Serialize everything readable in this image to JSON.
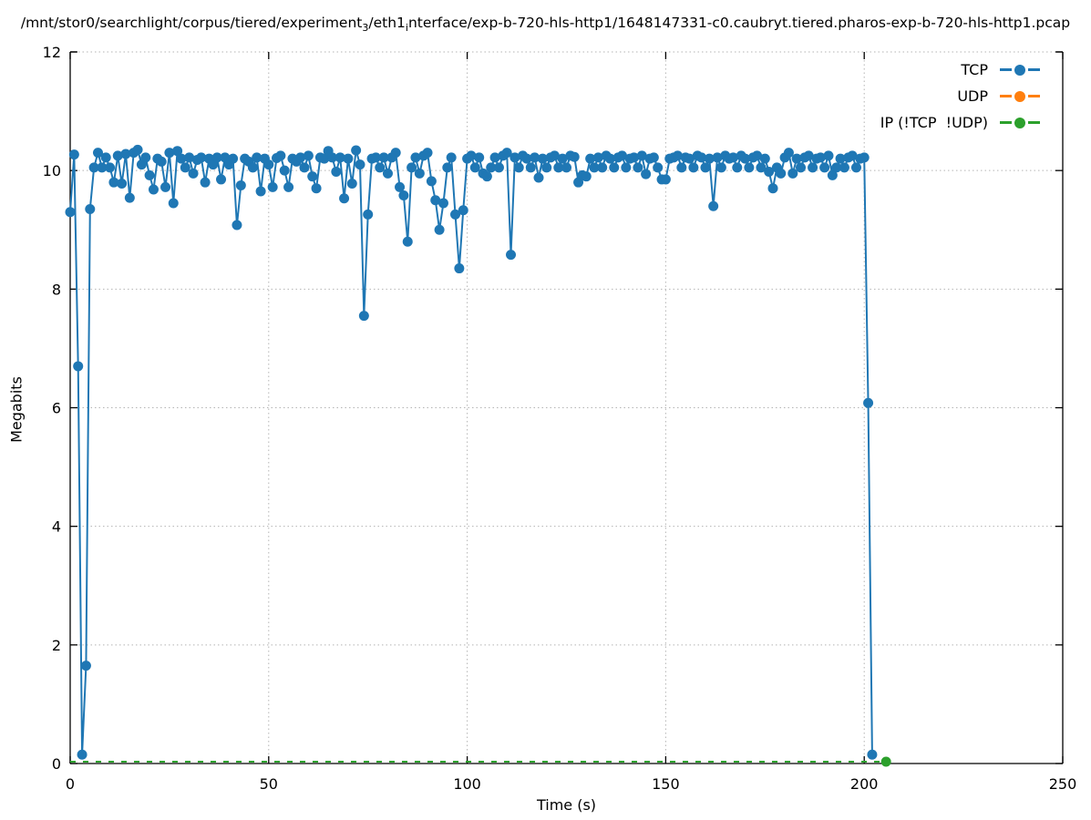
{
  "title": {
    "pre": "/mnt/stor0/searchlight/corpus/tiered/experiment",
    "sub1": "3",
    "mid": "/eth1",
    "sub2": "i",
    "post": "nterface/exp-b-720-hls-http1/1648147331-c0.caubryt.tiered.pharos-exp-b-720-hls-http1.pcap"
  },
  "axes": {
    "ylabel": "Megabits",
    "xlabel": "Time (s)",
    "xlim": [
      0,
      250
    ],
    "ylim": [
      0,
      12
    ],
    "x_ticks": [
      0,
      50,
      100,
      150,
      200,
      250
    ],
    "y_ticks": [
      0,
      2,
      4,
      6,
      8,
      10,
      12
    ],
    "grid": "dotted"
  },
  "legend": {
    "position": "top-right-inside",
    "items": [
      {
        "label": "TCP",
        "color": "#1f77b4"
      },
      {
        "label": "UDP",
        "color": "#ff7f0e"
      },
      {
        "label": "IP (!TCP  !UDP)",
        "color": "#2ca02c"
      }
    ]
  },
  "colors": {
    "tcp": "#1f77b4",
    "udp": "#ff7f0e",
    "ip_other": "#2ca02c",
    "grid": "#b4b4b4",
    "axis": "#000000",
    "background": "#ffffff"
  },
  "chart_data": {
    "type": "line",
    "title": "/mnt/stor0/searchlight/corpus/tiered/experiment_3/eth1_interface/exp-b-720-hls-http1/1648147331-c0.caubryt.tiered.pharos-exp-b-720-hls-http1.pcap",
    "xlabel": "Time (s)",
    "ylabel": "Megabits",
    "xlim": [
      0,
      250
    ],
    "ylim": [
      0,
      12
    ],
    "legend_position": "top-right",
    "series": [
      {
        "name": "TCP",
        "color": "#1f77b4",
        "markers": "all",
        "dash": null,
        "x_start": 0,
        "x_step": 1,
        "values": [
          9.3,
          10.27,
          6.7,
          0.15,
          1.65,
          9.35,
          10.05,
          10.3,
          10.05,
          10.22,
          10.05,
          9.8,
          10.25,
          9.78,
          10.28,
          9.54,
          10.3,
          10.35,
          10.1,
          10.22,
          9.92,
          9.68,
          10.2,
          10.15,
          9.72,
          10.3,
          9.45,
          10.33,
          10.2,
          10.05,
          10.22,
          9.95,
          10.18,
          10.22,
          9.8,
          10.2,
          10.1,
          10.22,
          9.85,
          10.22,
          10.1,
          10.2,
          9.08,
          9.75,
          10.2,
          10.15,
          10.05,
          10.22,
          9.65,
          10.2,
          10.1,
          9.72,
          10.21,
          10.25,
          10.0,
          9.72,
          10.2,
          10.15,
          10.22,
          10.05,
          10.25,
          9.9,
          9.7,
          10.22,
          10.2,
          10.33,
          10.22,
          9.98,
          10.22,
          9.53,
          10.2,
          9.78,
          10.34,
          10.1,
          7.55,
          9.26,
          10.2,
          10.22,
          10.05,
          10.22,
          9.95,
          10.22,
          10.3,
          9.72,
          9.58,
          8.8,
          10.05,
          10.22,
          9.95,
          10.25,
          10.3,
          9.82,
          9.5,
          9.0,
          9.45,
          10.05,
          10.22,
          9.26,
          8.35,
          9.33,
          10.2,
          10.25,
          10.05,
          10.22,
          9.95,
          9.9,
          10.05,
          10.22,
          10.05,
          10.25,
          10.3,
          8.58,
          10.22,
          10.05,
          10.25,
          10.2,
          10.05,
          10.22,
          9.88,
          10.2,
          10.05,
          10.22,
          10.25,
          10.05,
          10.2,
          10.05,
          10.25,
          10.23,
          9.8,
          9.92,
          9.9,
          10.2,
          10.05,
          10.22,
          10.05,
          10.25,
          10.2,
          10.05,
          10.22,
          10.25,
          10.05,
          10.2,
          10.22,
          10.05,
          10.25,
          9.94,
          10.2,
          10.22,
          10.05,
          9.85,
          9.85,
          10.2,
          10.22,
          10.25,
          10.05,
          10.22,
          10.2,
          10.05,
          10.25,
          10.22,
          10.05,
          10.2,
          9.4,
          10.22,
          10.05,
          10.25,
          10.2,
          10.22,
          10.05,
          10.25,
          10.2,
          10.05,
          10.22,
          10.25,
          10.05,
          10.2,
          9.98,
          9.7,
          10.05,
          9.95,
          10.22,
          10.3,
          9.95,
          10.2,
          10.05,
          10.22,
          10.25,
          10.05,
          10.2,
          10.22,
          10.05,
          10.25,
          9.92,
          10.05,
          10.2,
          10.05,
          10.22,
          10.25,
          10.05,
          10.2,
          10.22,
          6.08,
          0.15
        ]
      },
      {
        "name": "UDP",
        "color": "#ff7f0e",
        "markers": "none",
        "dash": null,
        "x": [],
        "values": []
      },
      {
        "name": "IP (!TCP  !UDP)",
        "color": "#2ca02c",
        "markers": "last",
        "dash": "6 8",
        "x": [
          0,
          205.5
        ],
        "values": [
          0.03,
          0.03
        ]
      }
    ]
  }
}
